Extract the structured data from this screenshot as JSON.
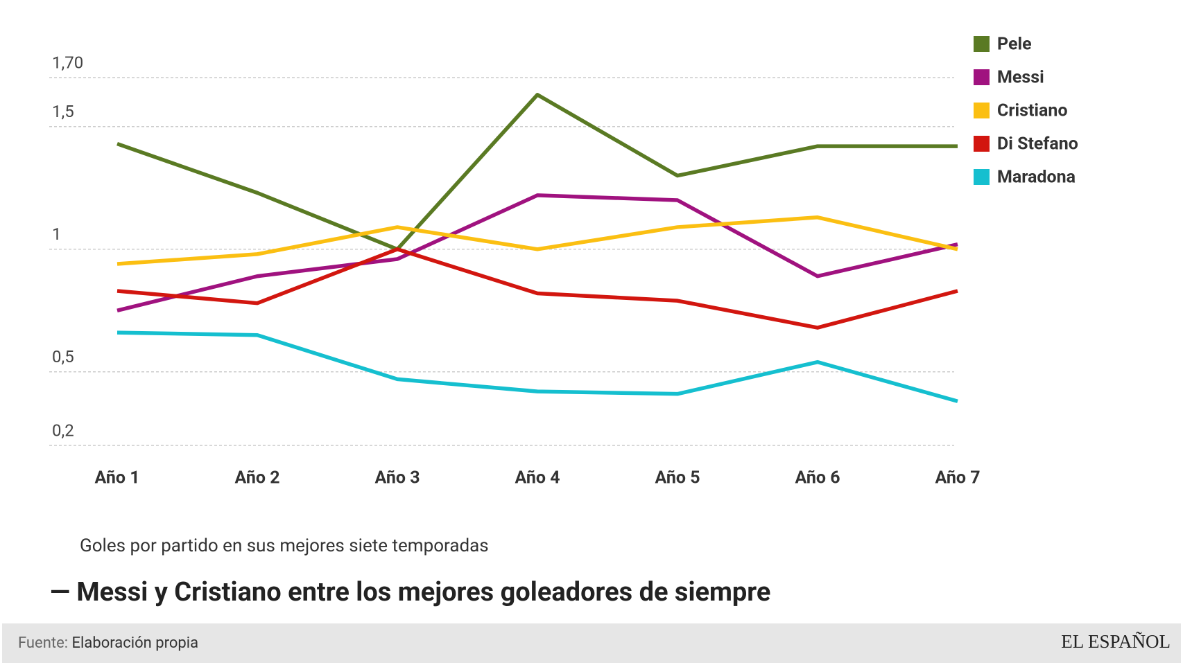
{
  "chart_data": {
    "type": "line",
    "title": "— Messi y Cristiano entre los mejores goleadores de siempre",
    "subtitle": "Goles por partido en sus mejores siete temporadas",
    "categories": [
      "Año 1",
      "Año 2",
      "Año 3",
      "Año 4",
      "Año 5",
      "Año 6",
      "Año 7"
    ],
    "series": [
      {
        "name": "Pele",
        "color": "#5a7a23",
        "values": [
          1.43,
          1.23,
          1.0,
          1.63,
          1.3,
          1.42,
          1.42
        ]
      },
      {
        "name": "Messi",
        "color": "#a0127f",
        "values": [
          0.75,
          0.89,
          0.96,
          1.22,
          1.2,
          0.89,
          1.02
        ]
      },
      {
        "name": "Cristiano",
        "color": "#fbbf12",
        "values": [
          0.94,
          0.98,
          1.09,
          1.0,
          1.09,
          1.13,
          1.0
        ]
      },
      {
        "name": "Di Stefano",
        "color": "#d2160f",
        "values": [
          0.83,
          0.78,
          1.0,
          0.82,
          0.79,
          0.68,
          0.83
        ]
      },
      {
        "name": "Maradona",
        "color": "#15bfcf",
        "values": [
          0.66,
          0.65,
          0.47,
          0.42,
          0.41,
          0.54,
          0.38
        ]
      }
    ],
    "ylim": [
      0.2,
      1.7
    ],
    "yticks": [
      {
        "value": 0.2,
        "label": "0,2"
      },
      {
        "value": 0.5,
        "label": "0,5"
      },
      1,
      {
        "value": 1.5,
        "label": "1,5"
      },
      {
        "value": 1.7,
        "label": "1,70"
      }
    ],
    "grid": true,
    "legend": "top-right"
  },
  "footer": {
    "source_label": "Fuente:",
    "source": "Elaboración propia",
    "brand": "EL ESPAÑOL"
  }
}
